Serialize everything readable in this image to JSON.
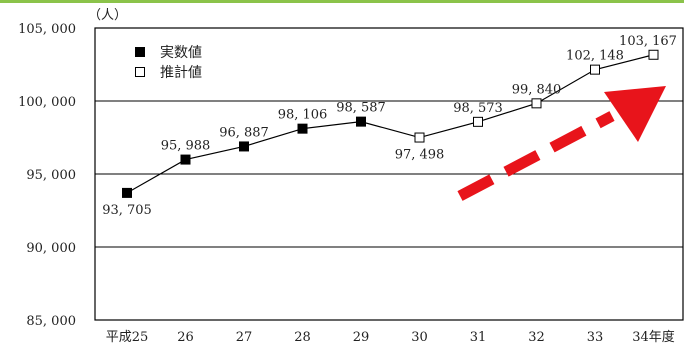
{
  "chart_data": {
    "type": "line",
    "unit_label": "（人）",
    "categories": [
      "平成25",
      "26",
      "27",
      "28",
      "29",
      "30",
      "31",
      "32",
      "33",
      "34年度"
    ],
    "yticks": [
      "105, 000",
      "100, 000",
      "95, 000",
      "90, 000",
      "85, 000"
    ],
    "ytick_values": [
      105000,
      100000,
      95000,
      90000,
      85000
    ],
    "ylim": [
      85000,
      105000
    ],
    "grid": "horizontal",
    "legend_position": "top-left",
    "series": [
      {
        "name": "実数値",
        "marker": "filled-square",
        "x": [
          "平成25",
          "26",
          "27",
          "28",
          "29"
        ],
        "values": [
          93705,
          95988,
          96887,
          98106,
          98587
        ],
        "labels": [
          "93, 705",
          "95, 988",
          "96, 887",
          "98, 106",
          "98, 587"
        ]
      },
      {
        "name": "推計値",
        "marker": "open-square",
        "x": [
          "30",
          "31",
          "32",
          "33",
          "34年度"
        ],
        "values": [
          97498,
          98573,
          99840,
          102148,
          103167
        ],
        "labels": [
          "97, 498",
          "98, 573",
          "99, 840",
          "102, 148",
          "103, 167"
        ]
      }
    ],
    "annotation": {
      "type": "dashed-arrow",
      "direction": "upward trend",
      "color": "#e8141b"
    },
    "colors": {
      "line": "#000000",
      "frame_top": "#8bc34a",
      "arrow": "#e8141b"
    }
  }
}
